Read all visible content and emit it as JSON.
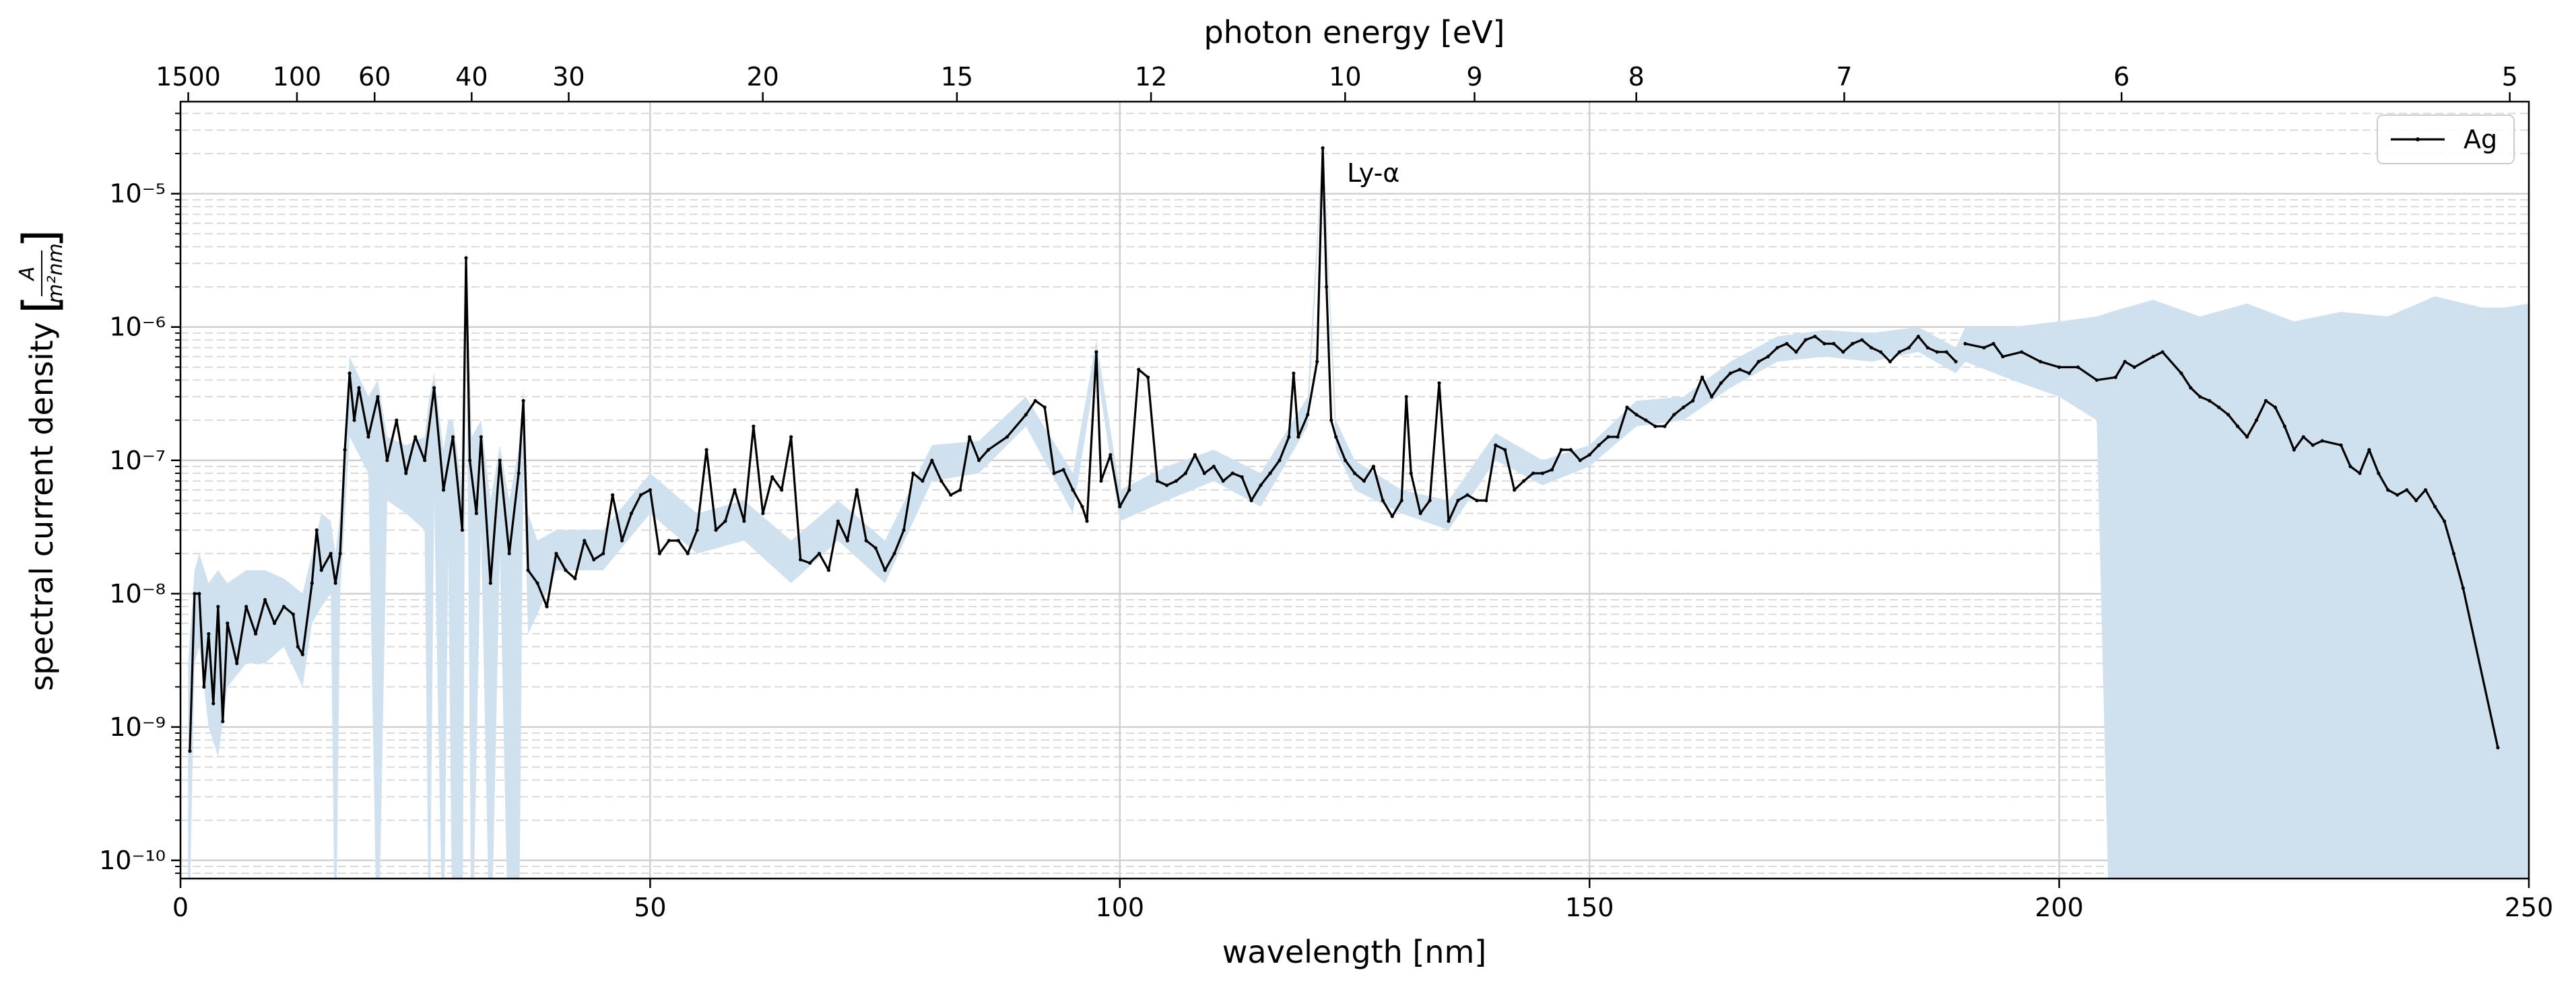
{
  "chart_data": {
    "type": "line",
    "xlabel": "wavelength [nm]",
    "x2label": "photon energy [eV]",
    "ylabel": "spectral current density",
    "yunit": {
      "numerator": "A",
      "denominator": "m²nm"
    },
    "yscale": "log",
    "grid": true,
    "legend": "upper right",
    "xlim": [
      0,
      250
    ],
    "xticks": [
      0,
      50,
      100,
      150,
      200,
      250
    ],
    "x2ticks": [
      1500,
      100,
      60,
      40,
      30,
      20,
      15,
      12,
      10,
      9,
      8,
      7,
      6,
      5
    ],
    "ylim": [
      7.3e-11,
      4.9e-05
    ],
    "yticks": [
      {
        "value": 1e-10,
        "label": "10⁻¹⁰"
      },
      {
        "value": 1e-09,
        "label": "10⁻⁹"
      },
      {
        "value": 1e-08,
        "label": "10⁻⁸"
      },
      {
        "value": 1e-07,
        "label": "10⁻⁷"
      },
      {
        "value": 1e-06,
        "label": "10⁻⁶"
      },
      {
        "value": 1e-05,
        "label": "10⁻⁵"
      }
    ],
    "yminorticks": [
      8e-11,
      9e-11,
      2e-10,
      3e-10,
      4e-10,
      5e-10,
      6e-10,
      7e-10,
      8e-10,
      9e-10,
      2e-09,
      3e-09,
      4e-09,
      5e-09,
      6e-09,
      7e-09,
      8e-09,
      9e-09,
      2e-08,
      3e-08,
      4e-08,
      5e-08,
      6e-08,
      7e-08,
      8e-08,
      9e-08,
      2e-07,
      3e-07,
      4e-07,
      5e-07,
      6e-07,
      7e-07,
      8e-07,
      9e-07,
      2e-06,
      3e-06,
      4e-06,
      5e-06,
      6e-06,
      7e-06,
      8e-06,
      9e-06,
      2e-05,
      3e-05,
      4e-05
    ],
    "annotations": [
      {
        "text": "Ly-α",
        "x": 121.6,
        "y": 2.2e-05
      }
    ],
    "x": [
      1,
      1.5,
      2,
      2.5,
      3,
      3.5,
      4,
      4.5,
      5,
      6,
      7,
      8,
      9,
      10,
      11,
      12,
      12.5,
      13,
      14,
      14.5,
      15,
      16,
      16.5,
      17,
      17.5,
      18,
      18.5,
      19,
      20,
      21,
      22,
      23,
      24,
      25,
      26,
      27,
      28,
      29,
      30,
      30.4,
      30.8,
      31.5,
      32,
      33,
      34,
      35,
      36,
      36.5,
      37,
      38,
      39,
      40,
      41,
      42,
      43,
      44,
      45,
      46,
      47,
      48,
      49,
      50,
      51,
      52,
      53,
      54,
      55,
      56,
      57,
      58,
      59,
      60,
      61,
      62,
      63,
      64,
      65,
      66,
      67,
      68,
      69,
      70,
      71,
      72,
      73,
      74,
      75,
      76,
      77,
      78,
      79,
      80,
      81,
      82,
      83,
      84,
      85,
      86,
      88,
      90,
      91,
      92,
      93,
      94,
      95,
      96,
      96.5,
      97.5,
      98,
      99,
      100,
      101,
      102,
      103,
      104,
      105,
      106,
      107,
      108,
      109,
      110,
      111,
      112,
      113,
      114,
      115,
      116,
      117,
      118,
      118.5,
      119,
      120,
      121,
      121.6,
      122,
      122.5,
      123,
      124,
      125,
      126,
      127,
      128,
      129,
      130,
      130.5,
      131,
      132,
      133,
      134,
      135,
      136,
      137,
      138,
      139,
      140,
      141,
      142,
      143,
      144,
      145,
      146,
      147,
      148,
      149,
      150,
      151,
      152,
      153,
      154,
      155,
      156,
      157,
      158,
      159,
      160,
      161,
      162,
      163,
      164,
      165,
      166,
      167,
      168,
      169,
      170,
      171,
      172,
      173,
      174,
      175,
      176,
      177,
      178,
      179,
      180,
      181,
      182,
      183,
      184,
      185,
      186,
      187,
      188,
      189,
      189.5,
      190,
      192,
      193,
      194,
      196,
      198,
      200,
      202,
      204,
      206,
      207,
      208,
      210,
      211,
      213,
      214,
      215,
      216,
      217,
      218,
      219,
      220,
      221,
      222,
      223,
      224,
      225,
      226,
      227,
      228,
      230,
      231,
      232,
      233,
      234,
      235,
      236,
      237,
      238,
      239,
      240,
      241,
      242,
      243,
      246.7
    ],
    "series": [
      {
        "name": "Ag",
        "color": "#000000",
        "values": [
          6.6e-10,
          1e-08,
          1e-08,
          2e-09,
          5e-09,
          1.5e-09,
          8e-09,
          1.1e-09,
          6e-09,
          3e-09,
          8e-09,
          5e-09,
          9e-09,
          6e-09,
          8e-09,
          7e-09,
          4e-09,
          3.5e-09,
          1.2e-08,
          3e-08,
          1.5e-08,
          2e-08,
          1.2e-08,
          2e-08,
          1.2e-07,
          4.5e-07,
          2e-07,
          3.5e-07,
          1.5e-07,
          3e-07,
          1e-07,
          2e-07,
          8e-08,
          1.5e-07,
          1e-07,
          3.5e-07,
          6e-08,
          1.5e-07,
          3e-08,
          3.3e-06,
          1e-07,
          4e-08,
          1.5e-07,
          1.2e-08,
          1e-07,
          2e-08,
          8e-08,
          2.8e-07,
          1.5e-08,
          1.2e-08,
          8e-09,
          2e-08,
          1.5e-08,
          1.3e-08,
          2.5e-08,
          1.8e-08,
          2e-08,
          5.5e-08,
          2.5e-08,
          4e-08,
          5.5e-08,
          6e-08,
          2e-08,
          2.5e-08,
          2.5e-08,
          2e-08,
          3e-08,
          1.2e-07,
          3e-08,
          3.5e-08,
          6e-08,
          3.5e-08,
          1.8e-07,
          4e-08,
          7.5e-08,
          6e-08,
          1.5e-07,
          1.8e-08,
          1.7e-08,
          2e-08,
          1.5e-08,
          3.5e-08,
          2.5e-08,
          6e-08,
          2.5e-08,
          2.2e-08,
          1.5e-08,
          2e-08,
          3e-08,
          8e-08,
          7e-08,
          1e-07,
          7e-08,
          5.5e-08,
          6e-08,
          1.5e-07,
          1e-07,
          1.2e-07,
          1.5e-07,
          2.2e-07,
          2.8e-07,
          2.5e-07,
          8e-08,
          8.5e-08,
          6e-08,
          4.5e-08,
          3.5e-08,
          6.5e-07,
          7e-08,
          1.1e-07,
          4.5e-08,
          6e-08,
          4.8e-07,
          4.2e-07,
          7e-08,
          6.5e-08,
          7e-08,
          8e-08,
          1.1e-07,
          8e-08,
          9e-08,
          7e-08,
          8e-08,
          7.5e-08,
          5e-08,
          6.5e-08,
          8e-08,
          1e-07,
          1.5e-07,
          4.5e-07,
          1.5e-07,
          2.2e-07,
          5.5e-07,
          2.2e-05,
          2e-06,
          2e-07,
          1.5e-07,
          1e-07,
          8e-08,
          7e-08,
          9e-08,
          5e-08,
          3.8e-08,
          5e-08,
          3e-07,
          8e-08,
          4e-08,
          5e-08,
          3.8e-07,
          3.5e-08,
          5e-08,
          5.5e-08,
          5e-08,
          5e-08,
          1.3e-07,
          1.2e-07,
          6e-08,
          7e-08,
          8e-08,
          8e-08,
          8.5e-08,
          1.2e-07,
          1.2e-07,
          1e-07,
          1.1e-07,
          1.3e-07,
          1.5e-07,
          1.5e-07,
          2.5e-07,
          2.2e-07,
          2e-07,
          1.8e-07,
          1.8e-07,
          2.2e-07,
          2.5e-07,
          2.8e-07,
          4.2e-07,
          3e-07,
          3.8e-07,
          4.5e-07,
          4.8e-07,
          4.5e-07,
          5.5e-07,
          6e-07,
          7e-07,
          7.5e-07,
          6.5e-07,
          8e-07,
          8.5e-07,
          7.5e-07,
          7.5e-07,
          6.5e-07,
          7.5e-07,
          8e-07,
          7e-07,
          6.5e-07,
          5.5e-07,
          6.5e-07,
          7e-07,
          8.5e-07,
          7e-07,
          6.5e-07,
          6.5e-07,
          5.5e-07,
          null,
          7.5e-07,
          7e-07,
          7.5e-07,
          6e-07,
          6.5e-07,
          5.5e-07,
          5e-07,
          5e-07,
          4e-07,
          4.2e-07,
          5.5e-07,
          5e-07,
          6e-07,
          6.5e-07,
          4.5e-07,
          3.5e-07,
          3e-07,
          2.8e-07,
          2.5e-07,
          2.2e-07,
          1.8e-07,
          1.5e-07,
          2e-07,
          2.8e-07,
          2.5e-07,
          1.8e-07,
          1.2e-07,
          1.5e-07,
          1.3e-07,
          1.4e-07,
          1.3e-07,
          9e-08,
          8e-08,
          1.2e-07,
          8e-08,
          6e-08,
          5.5e-08,
          6e-08,
          5e-08,
          6e-08,
          4.5e-08,
          3.5e-08,
          2e-08,
          1.1e-08,
          7e-10
        ]
      }
    ],
    "band": {
      "color": "#cfe0ee",
      "x": [
        0.8,
        1.5,
        2,
        3,
        4,
        5,
        7,
        9,
        11,
        13,
        14,
        15,
        16,
        16.5,
        17,
        18,
        20,
        21,
        22,
        24,
        26,
        26.5,
        27,
        28,
        28.5,
        29,
        30,
        30.4,
        31,
        32,
        33,
        34,
        35,
        36,
        36.5,
        37,
        38,
        40,
        45,
        50,
        55,
        60,
        65,
        70,
        75,
        80,
        85,
        90,
        95,
        97.5,
        100,
        105,
        110,
        115,
        120,
        121.6,
        123,
        125,
        130,
        135,
        140,
        145,
        150,
        155,
        160,
        165,
        170,
        175,
        180,
        185,
        189,
        190,
        195,
        200,
        204,
        205.5,
        210,
        215,
        220,
        225,
        230,
        235,
        240,
        245,
        247.5,
        250
      ],
      "lower": [
        1e-11,
        3e-09,
        4e-09,
        1e-09,
        6e-10,
        2e-09,
        3e-09,
        3e-09,
        4e-09,
        2e-09,
        6e-09,
        8e-09,
        1e-08,
        1e-11,
        1e-08,
        1.5e-07,
        8e-08,
        1e-11,
        5e-08,
        4e-08,
        3e-08,
        1e-11,
        5e-08,
        1e-11,
        2e-08,
        1e-11,
        1e-11,
        2.5e-06,
        1e-11,
        3e-08,
        1e-11,
        2e-08,
        1e-11,
        1e-11,
        1e-07,
        5e-09,
        7e-09,
        1.5e-08,
        1.5e-08,
        4e-08,
        2e-08,
        2.5e-08,
        1.2e-08,
        2.5e-08,
        1.2e-08,
        7e-08,
        8e-08,
        1.8e-07,
        4e-08,
        5e-07,
        3.5e-08,
        5e-08,
        7e-08,
        4.5e-08,
        1.8e-07,
        2e-05,
        1.2e-07,
        6e-08,
        4e-08,
        3e-08,
        1e-07,
        6.5e-08,
        9e-08,
        1.8e-07,
        2e-07,
        3.5e-07,
        5.5e-07,
        6e-07,
        5.5e-07,
        6.5e-07,
        4.5e-07,
        5.5e-07,
        4e-07,
        3e-07,
        2e-07,
        1e-11,
        1e-11,
        1e-11,
        1e-11,
        1e-11,
        1e-11,
        1e-11,
        1e-11,
        1e-11,
        1e-11,
        1e-11
      ],
      "upper": [
        3e-09,
        1.5e-08,
        2e-08,
        1.2e-08,
        1.5e-08,
        1.2e-08,
        1.5e-08,
        1.5e-08,
        1.3e-08,
        1e-08,
        2e-08,
        4e-08,
        3.5e-08,
        2e-08,
        4e-08,
        6e-07,
        3e-07,
        4e-07,
        1.5e-07,
        1.3e-07,
        1.5e-07,
        3e-07,
        4.5e-07,
        1.2e-07,
        2e-07,
        2e-07,
        6e-08,
        4e-06,
        1.5e-07,
        2e-07,
        5e-08,
        1.3e-07,
        5e-08,
        1.2e-07,
        3.5e-07,
        4e-08,
        2.5e-08,
        3e-08,
        3e-08,
        8e-08,
        4e-08,
        5e-08,
        2.5e-08,
        5e-08,
        2.5e-08,
        1.3e-07,
        1.4e-07,
        3e-07,
        8e-08,
        8e-07,
        6e-08,
        9e-08,
        1.2e-07,
        8e-08,
        3e-07,
        2.5e-05,
        2e-07,
        1e-07,
        6e-08,
        5e-08,
        1.6e-07,
        1e-07,
        1.3e-07,
        2.8e-07,
        3e-07,
        5.5e-07,
        8.5e-07,
        9.5e-07,
        9e-07,
        1e-06,
        7e-07,
        1e-06,
        1e-06,
        1.1e-06,
        1.2e-06,
        1.3e-06,
        1.6e-06,
        1.2e-06,
        1.5e-06,
        1.1e-06,
        1.3e-06,
        1.2e-06,
        1.7e-06,
        1.4e-06,
        1.4e-06,
        1.5e-06
      ]
    }
  }
}
